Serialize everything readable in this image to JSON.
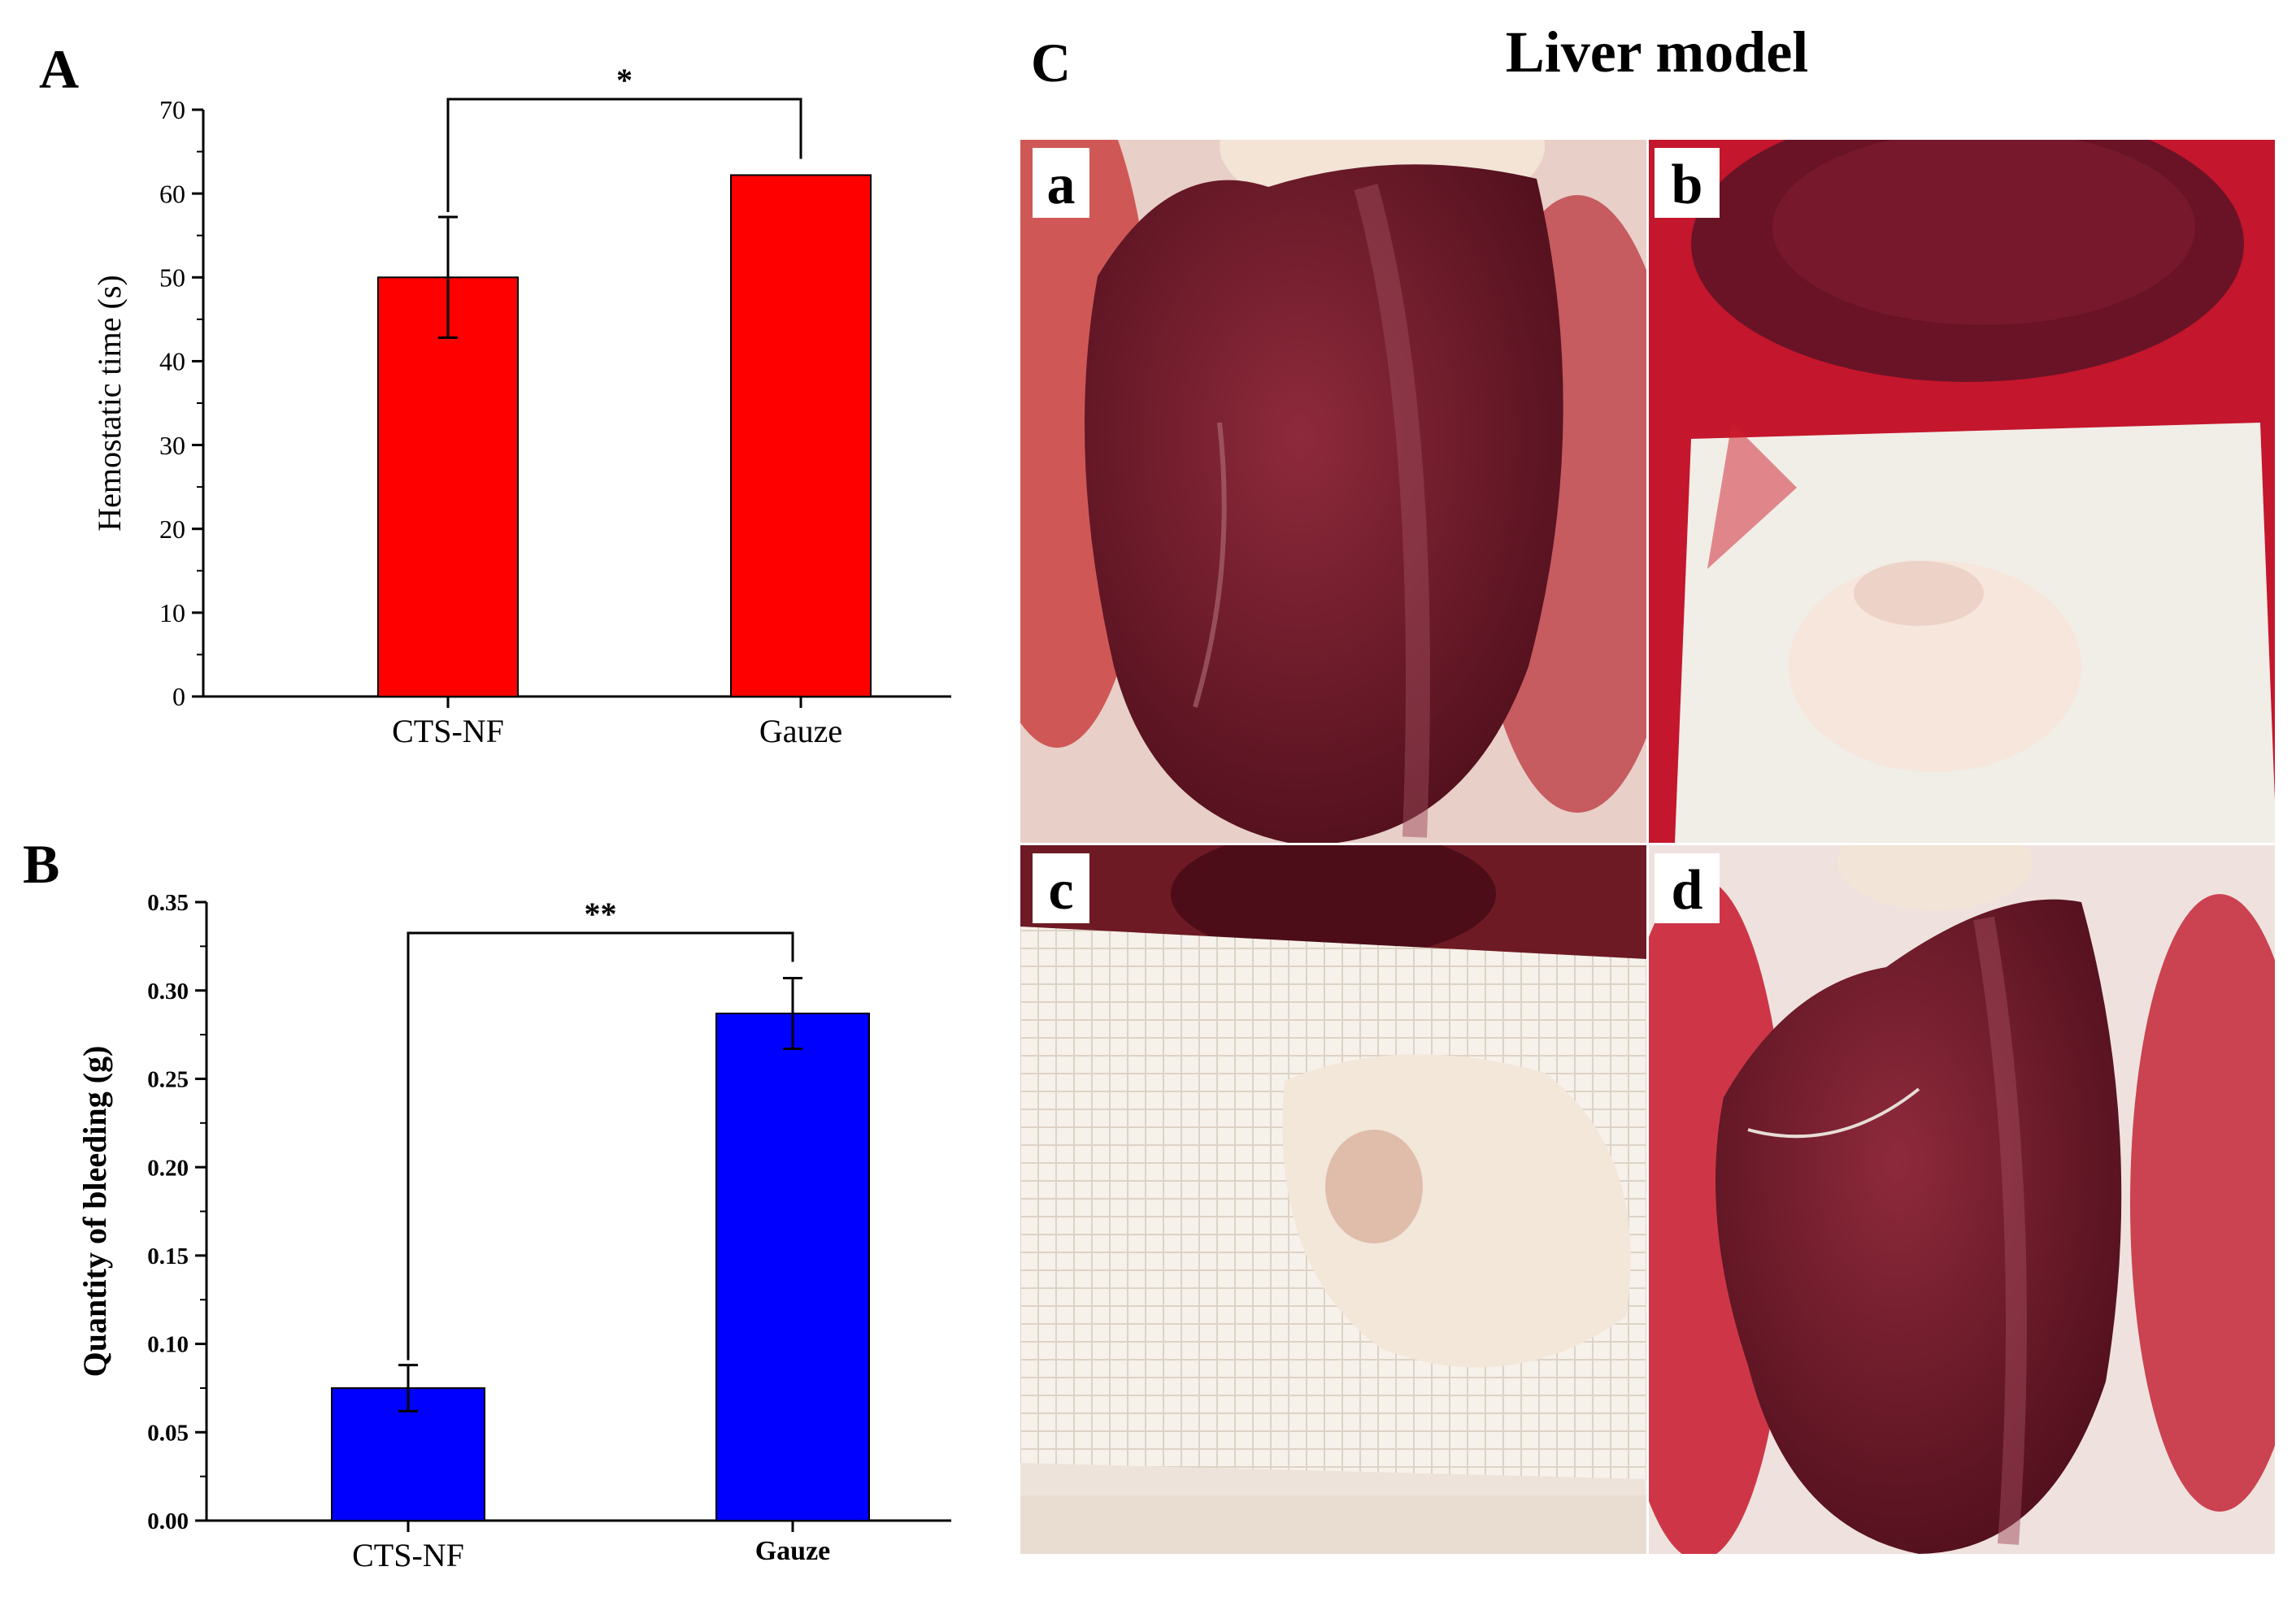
{
  "panel_A": {
    "letter": "A",
    "chart_data": {
      "type": "bar",
      "title": "",
      "xlabel": "",
      "ylabel": "Hemostatic time (s)",
      "categories": [
        "CTS-NF",
        "Gauze"
      ],
      "values": [
        50,
        62.2
      ],
      "errors": [
        7.2,
        0
      ],
      "ylim": [
        0,
        70
      ],
      "yticks": [
        "0",
        "10",
        "20",
        "30",
        "40",
        "50",
        "60",
        "70"
      ],
      "bar_color": "#ff0000",
      "significance": "*"
    }
  },
  "panel_B": {
    "letter": "B",
    "chart_data": {
      "type": "bar",
      "title": "",
      "xlabel": "",
      "ylabel": "Quantity of bleeding (g)",
      "categories": [
        "CTS-NF",
        "Gauze"
      ],
      "values": [
        0.075,
        0.287
      ],
      "errors": [
        0.013,
        0.02
      ],
      "ylim": [
        0,
        0.35
      ],
      "yticks": [
        "0.00",
        "0.05",
        "0.10",
        "0.15",
        "0.20",
        "0.25",
        "0.30",
        "0.35"
      ],
      "bar_color": "#0000ff",
      "significance": "**"
    }
  },
  "panel_C": {
    "letter": "C",
    "title": "Liver model",
    "photos": [
      {
        "label": "a",
        "subject": "liver"
      },
      {
        "label": "b",
        "subject": "liver-with-nanofiber"
      },
      {
        "label": "c",
        "subject": "gauze-on-liver"
      },
      {
        "label": "d",
        "subject": "liver"
      }
    ]
  },
  "colors": {
    "liver_dark": "#5e1222",
    "liver_mid": "#7d1a2e",
    "tissue_red": "#c8102e",
    "gauze_white": "#f3ede6"
  }
}
